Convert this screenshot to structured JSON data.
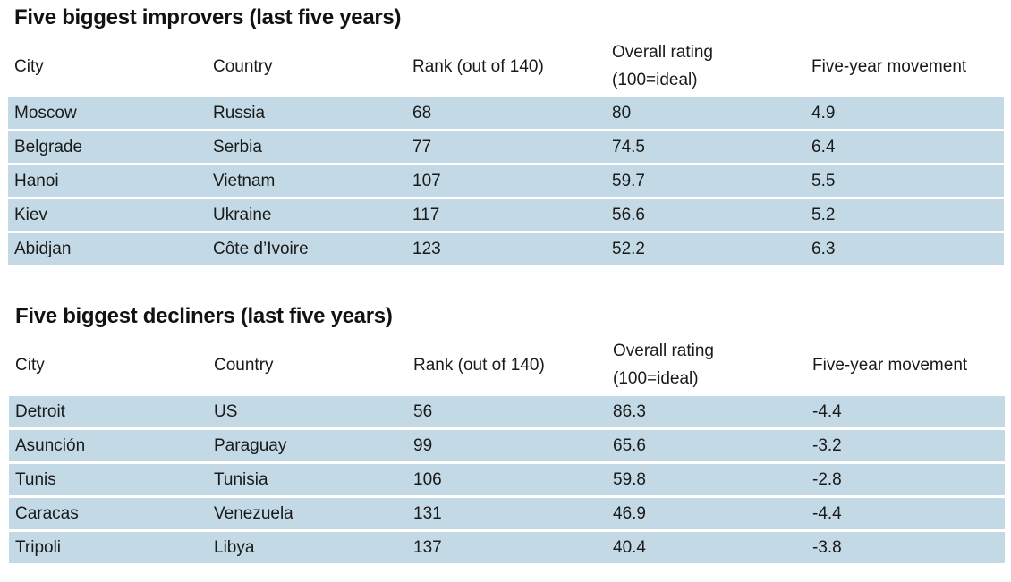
{
  "tables": [
    {
      "title": "Five biggest improvers (last five years)",
      "headers": {
        "city": "City",
        "country": "Country",
        "rank": "Rank (out of 140)",
        "rating_line1": "Overall rating",
        "rating_line2": "(100=ideal)",
        "movement": "Five-year movement"
      },
      "rows": [
        {
          "city": "Moscow",
          "country": "Russia",
          "rank": "68",
          "rating": "80",
          "movement": "4.9"
        },
        {
          "city": "Belgrade",
          "country": "Serbia",
          "rank": "77",
          "rating": "74.5",
          "movement": "6.4"
        },
        {
          "city": "Hanoi",
          "country": "Vietnam",
          "rank": "107",
          "rating": "59.7",
          "movement": "5.5"
        },
        {
          "city": "Kiev",
          "country": "Ukraine",
          "rank": "117",
          "rating": "56.6",
          "movement": "5.2"
        },
        {
          "city": "Abidjan",
          "country": "Côte d’Ivoire",
          "rank": "123",
          "rating": "52.2",
          "movement": "6.3"
        }
      ]
    },
    {
      "title": "Five biggest decliners (last five years)",
      "headers": {
        "city": "City",
        "country": "Country",
        "rank": "Rank (out of 140)",
        "rating_line1": "Overall rating",
        "rating_line2": "(100=ideal)",
        "movement": "Five-year movement"
      },
      "rows": [
        {
          "city": "Detroit",
          "country": "US",
          "rank": "56",
          "rating": "86.3",
          "movement": "-4.4"
        },
        {
          "city": "Asunción",
          "country": "Paraguay",
          "rank": "99",
          "rating": "65.6",
          "movement": "-3.2"
        },
        {
          "city": "Tunis",
          "country": "Tunisia",
          "rank": "106",
          "rating": "59.8",
          "movement": "-2.8"
        },
        {
          "city": "Caracas",
          "country": "Venezuela",
          "rank": "131",
          "rating": "46.9",
          "movement": "-4.4"
        },
        {
          "city": "Tripoli",
          "country": "Libya",
          "rank": "137",
          "rating": "40.4",
          "movement": "-3.8"
        }
      ]
    }
  ]
}
